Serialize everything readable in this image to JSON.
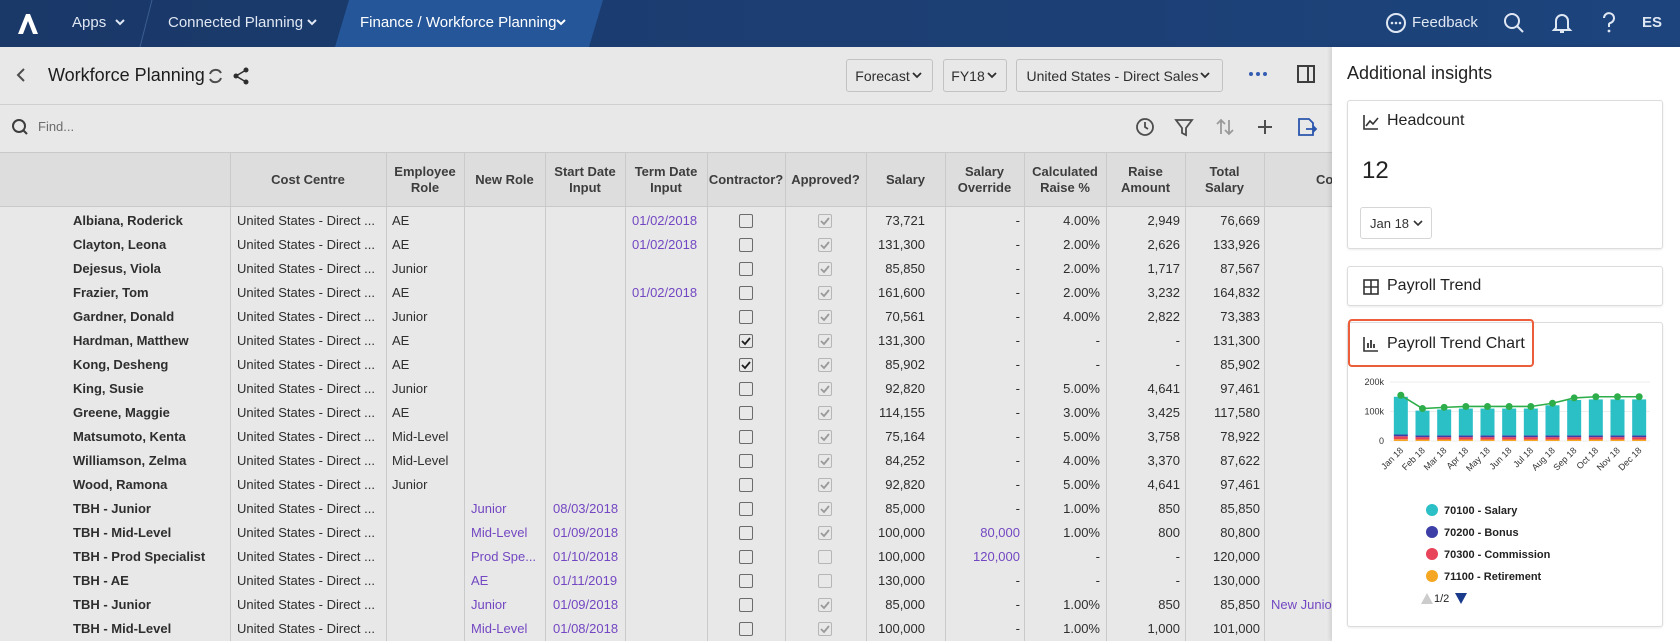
{
  "nav": {
    "items": [
      "Apps",
      "Connected Planning",
      "Finance / Workforce Planning"
    ],
    "feedback": "Feedback",
    "user": "ES"
  },
  "page": {
    "title": "Workforce Planning",
    "filters": [
      "Forecast",
      "FY18",
      "United States - Direct Sales"
    ],
    "search_placeholder": "Find..."
  },
  "table": {
    "columns": [
      "Cost Centre",
      "Employee Role",
      "New Role",
      "Start Date Input",
      "Term Date Input",
      "Contractor?",
      "Approved?",
      "Salary",
      "Salary Override",
      "Calculated Raise %",
      "Raise Amount",
      "Total Salary",
      "Co"
    ],
    "rows": [
      {
        "name": "Albiana, Roderick",
        "cost_centre": "United States - Direct ...",
        "role": "AE",
        "term": "01/02/2018",
        "contractor": false,
        "approved": true,
        "salary": "73,721",
        "override": "-",
        "raise_pct": "4.00%",
        "raise_amt": "2,949",
        "total": "76,669"
      },
      {
        "name": "Clayton, Leona",
        "cost_centre": "United States - Direct ...",
        "role": "AE",
        "term": "01/02/2018",
        "contractor": false,
        "approved": true,
        "salary": "131,300",
        "override": "-",
        "raise_pct": "2.00%",
        "raise_amt": "2,626",
        "total": "133,926"
      },
      {
        "name": "Dejesus, Viola",
        "cost_centre": "United States - Direct ...",
        "role": "Junior",
        "contractor": false,
        "approved": true,
        "salary": "85,850",
        "override": "-",
        "raise_pct": "2.00%",
        "raise_amt": "1,717",
        "total": "87,567"
      },
      {
        "name": "Frazier, Tom",
        "cost_centre": "United States - Direct ...",
        "role": "AE",
        "term": "01/02/2018",
        "contractor": false,
        "approved": true,
        "salary": "161,600",
        "override": "-",
        "raise_pct": "2.00%",
        "raise_amt": "3,232",
        "total": "164,832"
      },
      {
        "name": "Gardner, Donald",
        "cost_centre": "United States - Direct ...",
        "role": "Junior",
        "contractor": false,
        "approved": true,
        "salary": "70,561",
        "override": "-",
        "raise_pct": "4.00%",
        "raise_amt": "2,822",
        "total": "73,383"
      },
      {
        "name": "Hardman, Matthew",
        "cost_centre": "United States - Direct ...",
        "role": "AE",
        "contractor": true,
        "approved": true,
        "salary": "131,300",
        "override": "-",
        "raise_pct": "-",
        "raise_amt": "-",
        "total": "131,300"
      },
      {
        "name": "Kong, Desheng",
        "cost_centre": "United States - Direct ...",
        "role": "AE",
        "contractor": true,
        "approved": true,
        "salary": "85,902",
        "override": "-",
        "raise_pct": "-",
        "raise_amt": "-",
        "total": "85,902"
      },
      {
        "name": "King, Susie",
        "cost_centre": "United States - Direct ...",
        "role": "Junior",
        "contractor": false,
        "approved": true,
        "salary": "92,820",
        "override": "-",
        "raise_pct": "5.00%",
        "raise_amt": "4,641",
        "total": "97,461"
      },
      {
        "name": "Greene, Maggie",
        "cost_centre": "United States - Direct ...",
        "role": "AE",
        "contractor": false,
        "approved": true,
        "salary": "114,155",
        "override": "-",
        "raise_pct": "3.00%",
        "raise_amt": "3,425",
        "total": "117,580"
      },
      {
        "name": "Matsumoto, Kenta",
        "cost_centre": "United States - Direct ...",
        "role": "Mid-Level",
        "contractor": false,
        "approved": true,
        "salary": "75,164",
        "override": "-",
        "raise_pct": "5.00%",
        "raise_amt": "3,758",
        "total": "78,922"
      },
      {
        "name": "Williamson, Zelma",
        "cost_centre": "United States - Direct ...",
        "role": "Mid-Level",
        "contractor": false,
        "approved": true,
        "salary": "84,252",
        "override": "-",
        "raise_pct": "4.00%",
        "raise_amt": "3,370",
        "total": "87,622"
      },
      {
        "name": "Wood, Ramona",
        "cost_centre": "United States - Direct ...",
        "role": "Junior",
        "contractor": false,
        "approved": true,
        "salary": "92,820",
        "override": "-",
        "raise_pct": "5.00%",
        "raise_amt": "4,641",
        "total": "97,461"
      },
      {
        "name": "TBH - Junior",
        "cost_centre": "United States - Direct ...",
        "new_role": "Junior",
        "start": "08/03/2018",
        "contractor": false,
        "approved": true,
        "salary": "85,000",
        "override": "-",
        "raise_pct": "1.00%",
        "raise_amt": "850",
        "total": "85,850"
      },
      {
        "name": "TBH - Mid-Level",
        "cost_centre": "United States - Direct ...",
        "new_role": "Mid-Level",
        "start": "01/09/2018",
        "contractor": false,
        "approved": true,
        "salary": "100,000",
        "override": "80,000",
        "raise_pct": "1.00%",
        "raise_amt": "800",
        "total": "80,800"
      },
      {
        "name": "TBH - Prod Specialist",
        "cost_centre": "United States - Direct ...",
        "new_role": "Prod Spe...",
        "start": "01/10/2018",
        "contractor": false,
        "approved": false,
        "salary": "100,000",
        "override": "120,000",
        "raise_pct": "-",
        "raise_amt": "-",
        "total": "120,000"
      },
      {
        "name": "TBH - AE",
        "cost_centre": "United States - Direct ...",
        "new_role": "AE",
        "start": "01/11/2019",
        "contractor": false,
        "approved": false,
        "salary": "130,000",
        "override": "-",
        "raise_pct": "-",
        "raise_amt": "-",
        "total": "130,000"
      },
      {
        "name": "TBH - Junior",
        "cost_centre": "United States - Direct ...",
        "new_role": "Junior",
        "start": "01/09/2018",
        "contractor": false,
        "approved": true,
        "salary": "85,000",
        "override": "-",
        "raise_pct": "1.00%",
        "raise_amt": "850",
        "total": "85,850",
        "comment": "New Junio"
      },
      {
        "name": "TBH - Mid-Level",
        "cost_centre": "United States - Direct ...",
        "new_role": "Mid-Level",
        "start": "01/08/2018",
        "contractor": false,
        "approved": true,
        "salary": "100,000",
        "override": "-",
        "raise_pct": "1.00%",
        "raise_amt": "1,000",
        "total": "101,000"
      }
    ]
  },
  "insights": {
    "title": "Additional insights",
    "headcount": {
      "title": "Headcount",
      "value": 12,
      "period": "Jan 18"
    },
    "payroll_trend": {
      "title": "Payroll Trend"
    },
    "chart_title": "Payroll Trend Chart",
    "legend_page": "1/2"
  },
  "chart_data": {
    "type": "bar",
    "stacked": true,
    "categories": [
      "Jan 18",
      "Feb 18",
      "Mar 18",
      "Apr 18",
      "May 18",
      "Jun 18",
      "Jul 18",
      "Aug 18",
      "Sep 18",
      "Oct 18",
      "Nov 18",
      "Dec 18"
    ],
    "series": [
      {
        "name": "70100 - Salary",
        "color": "#2bbfc6",
        "values": [
          128000,
          84000,
          88000,
          91000,
          91000,
          91000,
          91000,
          102000,
          120000,
          122000,
          122000,
          122000
        ]
      },
      {
        "name": "70200 - Bonus",
        "color": "#3d3fa6",
        "values": [
          6000,
          6000,
          6000,
          6000,
          6000,
          6000,
          6000,
          6000,
          6000,
          6000,
          6000,
          6000
        ]
      },
      {
        "name": "70300 - Commission",
        "color": "#e8445a",
        "values": [
          10000,
          8000,
          8000,
          8000,
          8000,
          8000,
          8000,
          8000,
          8000,
          8000,
          8000,
          8000
        ]
      },
      {
        "name": "71100 - Retirement",
        "color": "#f5a623",
        "values": [
          6000,
          5000,
          5000,
          5000,
          5000,
          5000,
          5000,
          5000,
          5000,
          5000,
          5000,
          5000
        ]
      },
      {
        "color": "#2eae4a",
        "kind": "line",
        "values": [
          155000,
          110000,
          114000,
          117000,
          117000,
          117000,
          117000,
          128000,
          146000,
          150000,
          150000,
          150000
        ]
      }
    ],
    "ylim": [
      0,
      200000
    ],
    "yticks": [
      {
        "value": 0,
        "label": "0"
      },
      {
        "value": 100000,
        "label": "100k"
      },
      {
        "value": 200000,
        "label": "200k"
      }
    ],
    "grid": true
  }
}
